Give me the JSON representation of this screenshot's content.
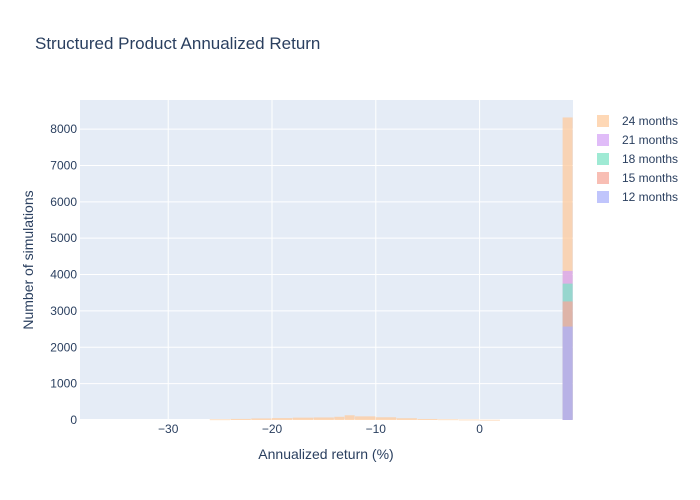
{
  "chart_data": {
    "type": "bar",
    "title": "Structured Product Annualized Return",
    "xlabel": "Annualized return (%)",
    "ylabel": "Number of simulations",
    "xlim": [
      -38.5,
      9
    ],
    "ylim": [
      0,
      8800
    ],
    "xticks": [
      -30,
      -20,
      -10,
      0
    ],
    "xtick_labels": [
      "−30",
      "−20",
      "−10",
      "0"
    ],
    "yticks": [
      0,
      1000,
      2000,
      3000,
      4000,
      5000,
      6000,
      7000,
      8000
    ],
    "ytick_labels": [
      "0",
      "1000",
      "2000",
      "3000",
      "4000",
      "5000",
      "6000",
      "7000",
      "8000"
    ],
    "grid": true,
    "legend_position": "right",
    "plot_background": "#e5ecf6",
    "series": [
      {
        "name": "24 months",
        "color": "#fecb9e",
        "bars": [
          {
            "x0": -26,
            "x1": -24,
            "y": 18
          },
          {
            "x0": -24,
            "x1": -22,
            "y": 30
          },
          {
            "x0": -22,
            "x1": -20,
            "y": 42
          },
          {
            "x0": -20,
            "x1": -18,
            "y": 52
          },
          {
            "x0": -18,
            "x1": -16,
            "y": 65
          },
          {
            "x0": -16,
            "x1": -14,
            "y": 70
          },
          {
            "x0": -14,
            "x1": -13,
            "y": 88
          },
          {
            "x0": -13,
            "x1": -12,
            "y": 130
          },
          {
            "x0": -12,
            "x1": -10,
            "y": 100
          },
          {
            "x0": -10,
            "x1": -8,
            "y": 75
          },
          {
            "x0": -8,
            "x1": -6,
            "y": 48
          },
          {
            "x0": -6,
            "x1": -4,
            "y": 28
          },
          {
            "x0": -4,
            "x1": -2,
            "y": 18
          },
          {
            "x0": -2,
            "x1": 0,
            "y": 12
          },
          {
            "x0": 0,
            "x1": 2,
            "y": 6
          },
          {
            "x0": 8,
            "x1": 9,
            "y": 8320
          }
        ]
      },
      {
        "name": "21 months",
        "color": "#d5a6f5",
        "bars": [
          {
            "x0": 8,
            "x1": 9,
            "y": 4100
          }
        ]
      },
      {
        "name": "18 months",
        "color": "#7fe3c6",
        "bars": [
          {
            "x0": 8,
            "x1": 9,
            "y": 3750
          }
        ]
      },
      {
        "name": "15 months",
        "color": "#f6a89b",
        "bars": [
          {
            "x0": 8,
            "x1": 9,
            "y": 3260
          }
        ]
      },
      {
        "name": "12 months",
        "color": "#abb2fb",
        "bars": [
          {
            "x0": 8,
            "x1": 9,
            "y": 2570
          }
        ]
      }
    ]
  }
}
